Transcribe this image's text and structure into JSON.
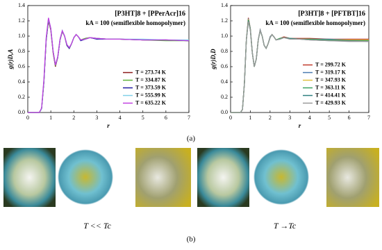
{
  "chart_data": [
    {
      "type": "line",
      "title": "[P3HT]8 + [PPerAcr]16",
      "subtitle": "kA = 100 (semiflexible homopolymer)",
      "x_label": "r",
      "y_label": "g(r)D,A",
      "x": [
        0,
        0.3,
        0.5,
        0.6,
        0.7,
        0.8,
        0.9,
        1.0,
        1.1,
        1.2,
        1.3,
        1.4,
        1.5,
        1.6,
        1.7,
        1.8,
        1.9,
        2.0,
        2.1,
        2.2,
        2.3,
        2.5,
        2.7,
        3.0,
        3.5,
        4,
        5,
        6,
        7
      ],
      "series": [
        {
          "name": "T = 273.74 K",
          "color": "#8b1a1a",
          "values": [
            0,
            0,
            0,
            0.05,
            0.4,
            0.95,
            1.2,
            1.08,
            0.78,
            0.6,
            0.72,
            0.95,
            1.06,
            1.0,
            0.88,
            0.84,
            0.9,
            0.98,
            1.02,
            0.99,
            0.95,
            0.97,
            0.98,
            0.97,
            0.96,
            0.96,
            0.95,
            0.95,
            0.94
          ]
        },
        {
          "name": "T = 334.87 K",
          "color": "#5fb33b",
          "values": [
            0,
            0,
            0,
            0.05,
            0.4,
            0.95,
            1.21,
            1.09,
            0.79,
            0.61,
            0.72,
            0.95,
            1.06,
            1.0,
            0.88,
            0.84,
            0.9,
            0.98,
            1.02,
            0.99,
            0.95,
            0.97,
            0.98,
            0.97,
            0.96,
            0.96,
            0.95,
            0.94,
            0.94
          ]
        },
        {
          "name": "T = 373.59 K",
          "color": "#1f1aa0",
          "values": [
            0,
            0,
            0,
            0.05,
            0.4,
            0.95,
            1.22,
            1.1,
            0.8,
            0.62,
            0.72,
            0.95,
            1.07,
            1.0,
            0.88,
            0.84,
            0.9,
            0.98,
            1.02,
            0.99,
            0.94,
            0.96,
            0.98,
            0.96,
            0.96,
            0.96,
            0.95,
            0.95,
            0.94
          ]
        },
        {
          "name": "T = 555.99 K",
          "color": "#80d0e8",
          "values": [
            0,
            0,
            0,
            0.05,
            0.42,
            0.97,
            1.23,
            1.1,
            0.8,
            0.62,
            0.73,
            0.96,
            1.07,
            1.0,
            0.89,
            0.85,
            0.9,
            0.98,
            1.02,
            0.99,
            0.95,
            0.96,
            0.98,
            0.97,
            0.96,
            0.96,
            0.96,
            0.95,
            0.95
          ]
        },
        {
          "name": "T = 635.22 K",
          "color": "#c040e0",
          "values": [
            0,
            0,
            0,
            0.06,
            0.43,
            0.98,
            1.24,
            1.1,
            0.8,
            0.62,
            0.73,
            0.96,
            1.07,
            1.0,
            0.89,
            0.85,
            0.9,
            0.98,
            1.02,
            0.99,
            0.95,
            0.96,
            0.98,
            0.97,
            0.96,
            0.96,
            0.95,
            0.95,
            0.94
          ]
        }
      ],
      "xlim": [
        0,
        7
      ],
      "ylim": [
        0,
        1.4
      ],
      "xticks": [
        0,
        1,
        2,
        3,
        4,
        5,
        6,
        7
      ],
      "yticks": [
        {
          "value": 0,
          "label": "0.0"
        },
        0.2,
        0.4,
        0.6,
        0.8,
        {
          "value": 1,
          "label": "1.0"
        },
        1.2,
        1.4
      ],
      "legend": "lower right"
    },
    {
      "type": "line",
      "title": "[P3HT]8 + [PFTBT]16",
      "subtitle": "kA = 100 (semiflexible homopolymer)",
      "x_label": "r",
      "y_label": "g(r)D,D",
      "x": [
        0,
        0.3,
        0.5,
        0.6,
        0.7,
        0.8,
        0.9,
        1.0,
        1.1,
        1.2,
        1.3,
        1.4,
        1.5,
        1.6,
        1.7,
        1.8,
        1.9,
        2.0,
        2.1,
        2.2,
        2.3,
        2.5,
        2.7,
        3.0,
        3.5,
        4,
        5,
        6,
        7
      ],
      "series": [
        {
          "name": "T = 299.72 K",
          "color": "#c0392b",
          "values": [
            0,
            0,
            0,
            0.04,
            0.38,
            0.95,
            1.24,
            1.1,
            0.78,
            0.6,
            0.7,
            0.95,
            1.08,
            1.0,
            0.88,
            0.84,
            0.9,
            0.99,
            1.02,
            0.99,
            0.95,
            0.97,
            0.99,
            0.97,
            0.97,
            0.97,
            0.96,
            0.96,
            0.96
          ]
        },
        {
          "name": "T = 319.17 K",
          "color": "#4a7bb0",
          "values": [
            0,
            0,
            0,
            0.04,
            0.38,
            0.95,
            1.23,
            1.1,
            0.78,
            0.6,
            0.7,
            0.95,
            1.08,
            1.0,
            0.88,
            0.84,
            0.9,
            0.99,
            1.02,
            0.99,
            0.95,
            0.97,
            0.98,
            0.97,
            0.96,
            0.96,
            0.96,
            0.95,
            0.95
          ]
        },
        {
          "name": "T = 347.93 K",
          "color": "#e0c040",
          "values": [
            0,
            0,
            0,
            0.04,
            0.38,
            0.95,
            1.22,
            1.09,
            0.78,
            0.6,
            0.7,
            0.95,
            1.07,
            1.0,
            0.88,
            0.84,
            0.9,
            0.98,
            1.02,
            0.99,
            0.95,
            0.97,
            0.98,
            0.97,
            0.96,
            0.96,
            0.95,
            0.95,
            0.95
          ]
        },
        {
          "name": "T = 363.11 K",
          "color": "#3aa060",
          "values": [
            0,
            0,
            0,
            0.04,
            0.38,
            0.95,
            1.21,
            1.09,
            0.78,
            0.6,
            0.7,
            0.95,
            1.07,
            1.0,
            0.88,
            0.84,
            0.9,
            0.98,
            1.02,
            0.99,
            0.95,
            0.97,
            0.98,
            0.97,
            0.96,
            0.96,
            0.95,
            0.94,
            0.94
          ]
        },
        {
          "name": "T = 414.41 K",
          "color": "#2f7f7f",
          "values": [
            0,
            0,
            0,
            0.04,
            0.38,
            0.95,
            1.2,
            1.08,
            0.78,
            0.6,
            0.7,
            0.95,
            1.07,
            1.0,
            0.88,
            0.84,
            0.9,
            0.98,
            1.02,
            0.99,
            0.95,
            0.96,
            0.98,
            0.97,
            0.96,
            0.95,
            0.94,
            0.94,
            0.93
          ]
        },
        {
          "name": "T = 429.93 K",
          "color": "#999999",
          "values": [
            0,
            0,
            0,
            0.04,
            0.38,
            0.95,
            1.19,
            1.08,
            0.78,
            0.6,
            0.7,
            0.95,
            1.07,
            1.0,
            0.88,
            0.84,
            0.9,
            0.98,
            1.02,
            0.99,
            0.95,
            0.96,
            0.98,
            0.96,
            0.96,
            0.95,
            0.94,
            0.93,
            0.93
          ]
        }
      ],
      "xlim": [
        0,
        7
      ],
      "ylim": [
        0,
        1.4
      ],
      "xticks": [
        0,
        1,
        2,
        3,
        4,
        5,
        6,
        7
      ],
      "yticks": [
        {
          "value": 0,
          "label": "0.0"
        },
        0.2,
        0.4,
        0.6,
        0.8,
        {
          "value": 1,
          "label": "1.0"
        },
        1.2,
        1.4
      ],
      "legend": "lower right"
    }
  ],
  "figure": {
    "panel_a": "(a)",
    "panel_b": "(b)",
    "caption_left": "T << Tc",
    "caption_right": "T →Tc"
  }
}
